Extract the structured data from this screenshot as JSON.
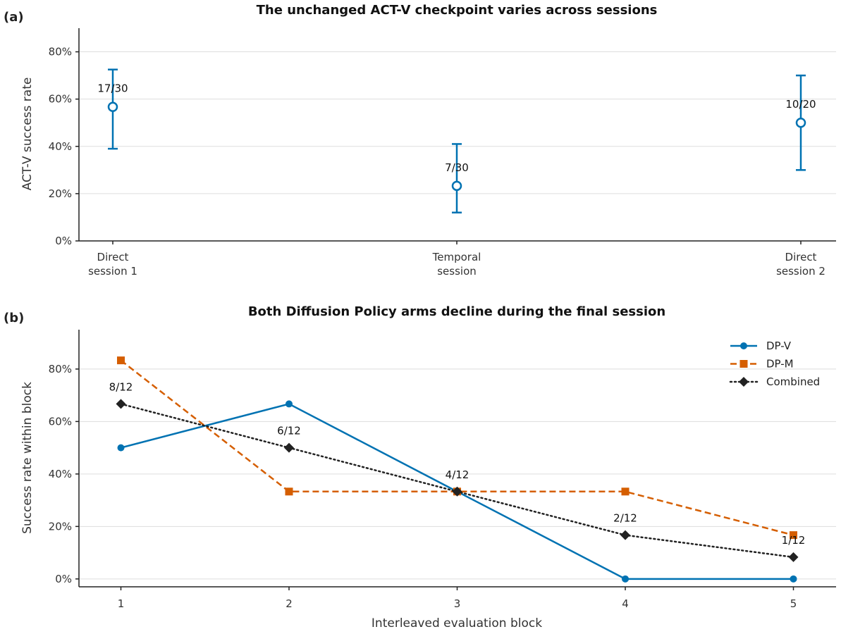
{
  "chart_data": [
    {
      "panel": "(a)",
      "type": "scatter",
      "title": "The unchanged ACT-V checkpoint varies across sessions",
      "xlabel": "",
      "ylabel": "ACT-V success rate",
      "ylim": [
        0,
        0.9
      ],
      "yticks": [
        "0%",
        "20%",
        "40%",
        "60%",
        "80%"
      ],
      "grid": "horizontal",
      "color": "#0072b2",
      "points": [
        {
          "category": [
            "Direct",
            "session 1"
          ],
          "value": 0.567,
          "low": 0.39,
          "high": 0.725,
          "label": "17/30"
        },
        {
          "category": [
            "Temporal",
            "session"
          ],
          "value": 0.233,
          "low": 0.12,
          "high": 0.41,
          "label": "7/30"
        },
        {
          "category": [
            "Direct",
            "session 2"
          ],
          "value": 0.5,
          "low": 0.3,
          "high": 0.7,
          "label": "10/20"
        }
      ]
    },
    {
      "panel": "(b)",
      "type": "line",
      "title": "Both Diffusion Policy arms decline during the final session",
      "xlabel": "Interleaved evaluation block",
      "ylabel": "Success rate within block",
      "x": [
        1,
        2,
        3,
        4,
        5
      ],
      "ylim": [
        -0.03,
        0.95
      ],
      "yticks": [
        "0%",
        "20%",
        "40%",
        "60%",
        "80%"
      ],
      "grid": "horizontal",
      "legend": "top-right",
      "series": [
        {
          "name": "DP-V",
          "values": [
            0.5,
            0.667,
            0.333,
            0.0,
            0.0
          ],
          "color": "#0072b2",
          "style": "solid",
          "marker": "circle"
        },
        {
          "name": "DP-M",
          "values": [
            0.833,
            0.333,
            0.333,
            0.333,
            0.167
          ],
          "color": "#d55e00",
          "style": "dashed",
          "marker": "square"
        },
        {
          "name": "Combined",
          "values": [
            0.667,
            0.5,
            0.333,
            0.167,
            0.083
          ],
          "color": "#222222",
          "style": "dotted",
          "marker": "diamond",
          "labels": [
            "8/12",
            "6/12",
            "4/12",
            "2/12",
            "1/12"
          ]
        }
      ]
    }
  ]
}
